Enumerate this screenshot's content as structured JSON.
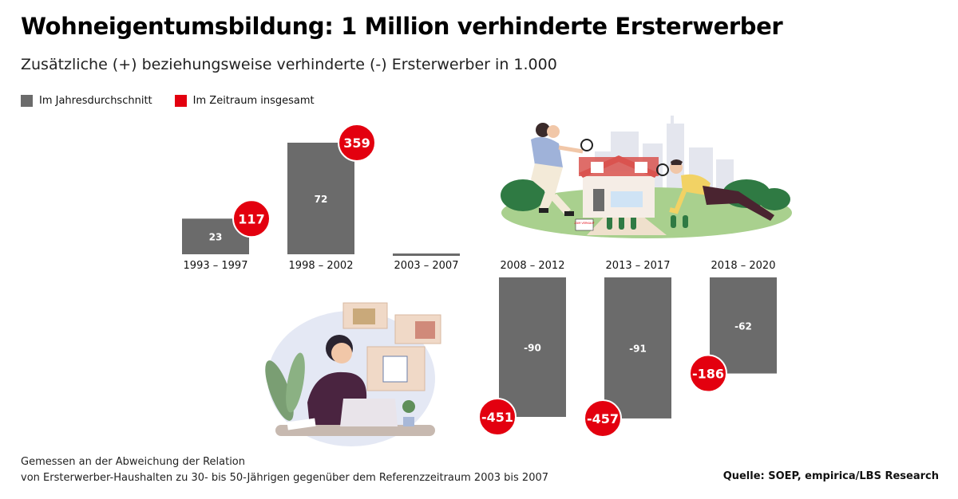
{
  "title": "Wohneigentumsbildung: 1 Million verhinderte Ersterwerber",
  "subtitle": "Zusätzliche (+) beziehungsweise verhinderte (-) Ersterwerber in 1.000",
  "legend": [
    {
      "label": "Im Jahresdurchschnitt",
      "color": "#6b6b6b"
    },
    {
      "label": "Im Zeitraum insgesamt",
      "color": "#e3000f"
    }
  ],
  "chart_data": {
    "type": "bar",
    "categories": [
      "1993 – 1997",
      "1998 – 2002",
      "2003 – 2007",
      "2008 – 2012",
      "2013 – 2017",
      "2018 – 2020"
    ],
    "series": [
      {
        "name": "Im Jahresdurchschnitt",
        "values": [
          23,
          72,
          0,
          -90,
          -91,
          -62
        ],
        "color": "#6b6b6b"
      },
      {
        "name": "Im Zeitraum insgesamt",
        "values": [
          117,
          359,
          0,
          -451,
          -457,
          -186
        ],
        "color": "#e3000f"
      }
    ],
    "bar_labels": [
      "23",
      "72",
      "",
      "-90",
      "-91",
      "-62"
    ],
    "total_labels": [
      "117",
      "359",
      "",
      "-451",
      "-457",
      "-186"
    ]
  },
  "sign_text": "ZUM VERKAUF",
  "footnote": {
    "line1": "Gemessen an der Abweichung der Relation",
    "line2": "von Ersterwerber-Haushalten zu 30- bis 50-Jährigen gegenüber dem Referenzzeitraum 2003 bis 2007"
  },
  "source": "Quelle: SOEP, empirica/LBS Research"
}
